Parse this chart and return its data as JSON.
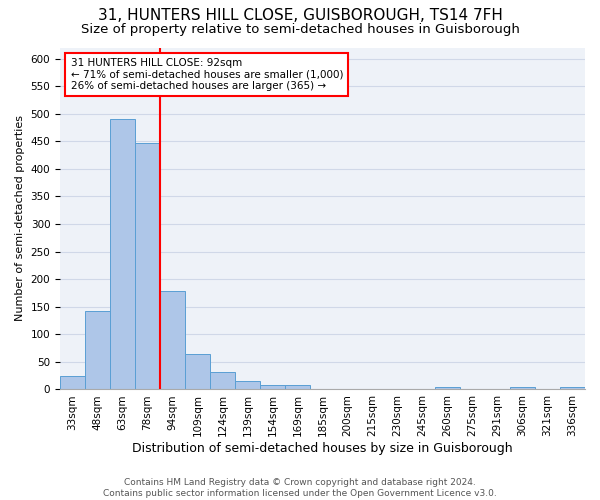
{
  "title": "31, HUNTERS HILL CLOSE, GUISBOROUGH, TS14 7FH",
  "subtitle": "Size of property relative to semi-detached houses in Guisborough",
  "xlabel": "Distribution of semi-detached houses by size in Guisborough",
  "ylabel": "Number of semi-detached properties",
  "footer_line1": "Contains HM Land Registry data © Crown copyright and database right 2024.",
  "footer_line2": "Contains public sector information licensed under the Open Government Licence v3.0.",
  "categories": [
    "33sqm",
    "48sqm",
    "63sqm",
    "78sqm",
    "94sqm",
    "109sqm",
    "124sqm",
    "139sqm",
    "154sqm",
    "169sqm",
    "185sqm",
    "200sqm",
    "215sqm",
    "230sqm",
    "245sqm",
    "260sqm",
    "275sqm",
    "291sqm",
    "306sqm",
    "321sqm",
    "336sqm"
  ],
  "values": [
    25,
    142,
    490,
    447,
    178,
    65,
    32,
    15,
    8,
    8,
    0,
    0,
    0,
    0,
    0,
    5,
    0,
    0,
    5,
    0,
    5
  ],
  "bar_color": "#aec6e8",
  "bar_edge_color": "#5a9fd4",
  "grid_color": "#d0d8e8",
  "background_color": "#eef2f8",
  "annotation_text": "31 HUNTERS HILL CLOSE: 92sqm\n← 71% of semi-detached houses are smaller (1,000)\n26% of semi-detached houses are larger (365) →",
  "annotation_box_color": "white",
  "annotation_box_edge_color": "red",
  "vline_color": "red",
  "vline_x_index": 3.5,
  "ylim": [
    0,
    620
  ],
  "yticks": [
    0,
    50,
    100,
    150,
    200,
    250,
    300,
    350,
    400,
    450,
    500,
    550,
    600
  ],
  "title_fontsize": 11,
  "subtitle_fontsize": 9.5,
  "xlabel_fontsize": 9,
  "ylabel_fontsize": 8,
  "tick_fontsize": 7.5,
  "annotation_fontsize": 7.5,
  "footer_fontsize": 6.5
}
